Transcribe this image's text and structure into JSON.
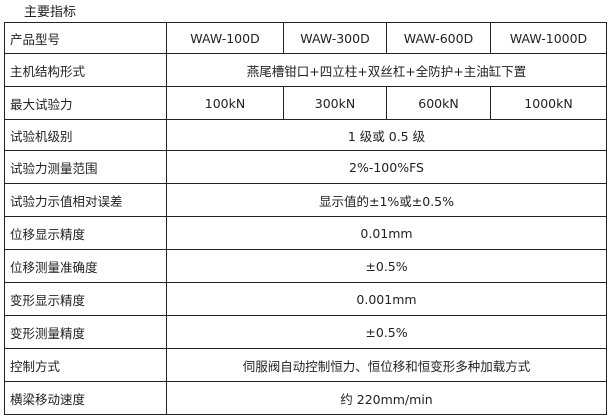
{
  "title": "主要指标",
  "models": [
    "WAW-100D",
    "WAW-300D",
    "WAW-600D",
    "WAW-1000D"
  ],
  "labels": {
    "model": "产品型号",
    "structure": "主机结构形式",
    "max_force": "最大试验力"
  },
  "structure": "燕尾槽钳口+四立柱+双丝杠+全防护+主油缸下置",
  "max_forces": [
    "100kN",
    "300kN",
    "600kN",
    "1000kN"
  ],
  "rows": [
    {
      "label": "试验机级别",
      "value": "1 级或 0.5 级"
    },
    {
      "label": "试验力测量范围",
      "value": "2%-100%FS"
    },
    {
      "label": "试验力示值相对误差",
      "value": "显示值的±1%或±0.5%"
    },
    {
      "label": "位移显示精度",
      "value": "0.01mm"
    },
    {
      "label": "位移测量准确度",
      "value": "±0.5%"
    },
    {
      "label": "变形显示精度",
      "value": "0.001mm"
    },
    {
      "label": "变形测量精度",
      "value": "±0.5%"
    },
    {
      "label": "控制方式",
      "value": "伺服阀自动控制恒力、恒位移和恒变形多种加载方式"
    },
    {
      "label": "横梁移动速度",
      "value": "约 220mm/min"
    }
  ]
}
